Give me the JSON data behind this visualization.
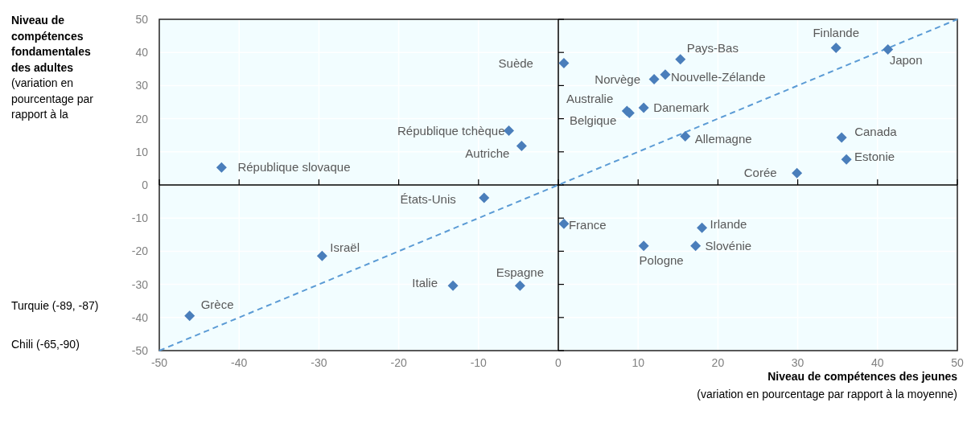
{
  "chart_data": {
    "type": "scatter",
    "xlabel": "Niveau de compétences des jeunes\n(variation en pourcentage par rapport à la moyenne)",
    "ylabel": "Niveau de\ncompétences\nfondamentales\ndes adultes\n(variation en\npourcentage par\nrapport à la",
    "xlim": [
      -50,
      50
    ],
    "ylim": [
      -50,
      50
    ],
    "xticks": [
      -50,
      -40,
      -30,
      -20,
      -10,
      0,
      10,
      20,
      30,
      40,
      50
    ],
    "yticks": [
      -50,
      -40,
      -30,
      -20,
      -10,
      0,
      10,
      20,
      30,
      40,
      50
    ],
    "grid": true,
    "series": [
      {
        "color": "#4a7ebb",
        "marker": "diamond",
        "x": [
          0.7,
          15.3,
          34.8,
          41.3,
          12.0,
          13.4,
          8.6,
          8.9,
          10.7,
          15.9,
          35.5,
          36.1,
          29.9,
          -6.2,
          -4.6,
          -42.2,
          -9.3,
          -29.6,
          -13.2,
          -4.8,
          -46.2,
          0.7,
          18.0,
          17.2,
          10.7
        ],
        "values": [
          36.8,
          37.9,
          41.4,
          40.9,
          31.9,
          33.3,
          22.3,
          21.7,
          23.3,
          14.7,
          14.3,
          7.7,
          3.6,
          16.4,
          11.8,
          5.3,
          -3.9,
          -21.4,
          -30.4,
          -30.4,
          -39.5,
          -11.7,
          -12.9,
          -18.4,
          -18.4
        ]
      },
      {
        "type": "line",
        "color": "#5b9bd5",
        "line_style": "dashed",
        "x": [
          -50,
          50
        ],
        "values": [
          -50,
          50
        ]
      }
    ],
    "annotations": [
      {
        "text": "Suède",
        "x": 0.7,
        "y": 36.8
      },
      {
        "text": "Pays-Bas",
        "x": 15.3,
        "y": 37.9
      },
      {
        "text": "Finlande",
        "x": 34.8,
        "y": 41.4
      },
      {
        "text": "Japon",
        "x": 41.3,
        "y": 40.9
      },
      {
        "text": "Norvège",
        "x": 12.0,
        "y": 31.9
      },
      {
        "text": "Nouvelle-Zélande",
        "x": 13.4,
        "y": 33.3
      },
      {
        "text": "Australie",
        "x": 8.6,
        "y": 22.3
      },
      {
        "text": "Belgique",
        "x": 8.9,
        "y": 21.7
      },
      {
        "text": "Danemark",
        "x": 10.7,
        "y": 23.3
      },
      {
        "text": "Allemagne",
        "x": 15.9,
        "y": 14.7
      },
      {
        "text": "Canada",
        "x": 35.5,
        "y": 14.3
      },
      {
        "text": "Estonie",
        "x": 36.1,
        "y": 7.7
      },
      {
        "text": "Corée",
        "x": 29.9,
        "y": 3.6
      },
      {
        "text": "République tchèque",
        "x": -6.2,
        "y": 16.4
      },
      {
        "text": "Autriche",
        "x": -4.6,
        "y": 11.8
      },
      {
        "text": "République slovaque",
        "x": -42.2,
        "y": 5.3
      },
      {
        "text": "États-Unis",
        "x": -9.3,
        "y": -3.9
      },
      {
        "text": "Israël",
        "x": -29.6,
        "y": -21.4
      },
      {
        "text": "Italie",
        "x": -13.2,
        "y": -30.4
      },
      {
        "text": "Espagne",
        "x": -4.8,
        "y": -30.4
      },
      {
        "text": "Grèce",
        "x": -46.2,
        "y": -39.5
      },
      {
        "text": "France",
        "x": 0.7,
        "y": -11.7
      },
      {
        "text": "Irlande",
        "x": 18.0,
        "y": -12.9
      },
      {
        "text": "Slovénie",
        "x": 17.2,
        "y": -18.4
      },
      {
        "text": "Pologne",
        "x": 10.7,
        "y": -18.4
      },
      "Turquie (-89, -87)",
      "Chili (-65,-90)"
    ]
  }
}
